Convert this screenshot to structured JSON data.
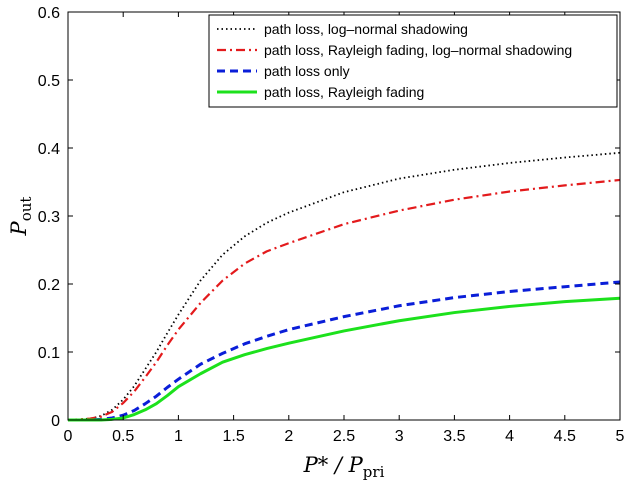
{
  "chart_data": {
    "type": "line",
    "title": "",
    "xlabel": {
      "main": "P* / P",
      "sub": "pri"
    },
    "ylabel": {
      "main": "P",
      "sub": "out"
    },
    "xlim": [
      0,
      5
    ],
    "ylim": [
      0,
      0.6
    ],
    "xticks": [
      "0",
      "0.5",
      "1",
      "1.5",
      "2",
      "2.5",
      "3",
      "3.5",
      "4",
      "4.5",
      "5"
    ],
    "yticks": [
      "0",
      "0.1",
      "0.2",
      "0.3",
      "0.4",
      "0.5",
      "0.6"
    ],
    "grid": false,
    "legend_position": "top-right",
    "x": [
      0,
      0.2,
      0.3,
      0.4,
      0.5,
      0.6,
      0.7,
      0.8,
      0.9,
      1.0,
      1.2,
      1.4,
      1.6,
      1.8,
      2.0,
      2.5,
      3.0,
      3.5,
      4.0,
      4.5,
      5.0
    ],
    "series": [
      {
        "name": "path loss, log–normal shadowing",
        "color": "#000000",
        "style": "dotted",
        "values": [
          0,
          0.002,
          0.006,
          0.015,
          0.03,
          0.05,
          0.075,
          0.1,
          0.128,
          0.155,
          0.205,
          0.243,
          0.27,
          0.29,
          0.305,
          0.335,
          0.355,
          0.368,
          0.378,
          0.386,
          0.393
        ]
      },
      {
        "name": "path loss, Rayleigh fading, log–normal shadowing",
        "color": "#e31a1c",
        "style": "dashdot",
        "values": [
          0,
          0.002,
          0.005,
          0.012,
          0.025,
          0.042,
          0.063,
          0.085,
          0.11,
          0.133,
          0.172,
          0.205,
          0.23,
          0.248,
          0.26,
          0.288,
          0.308,
          0.324,
          0.336,
          0.345,
          0.353
        ]
      },
      {
        "name": "path loss only",
        "color": "#0a1ed8",
        "style": "dashed",
        "values": [
          0,
          0.0,
          0.001,
          0.003,
          0.007,
          0.014,
          0.024,
          0.035,
          0.048,
          0.06,
          0.082,
          0.098,
          0.112,
          0.123,
          0.133,
          0.152,
          0.168,
          0.18,
          0.189,
          0.196,
          0.203
        ]
      },
      {
        "name": "path loss, Rayleigh fading",
        "color": "#1ce11c",
        "style": "solid",
        "values": [
          0,
          0.0,
          0.0,
          0.001,
          0.003,
          0.008,
          0.015,
          0.024,
          0.036,
          0.049,
          0.068,
          0.085,
          0.096,
          0.105,
          0.113,
          0.131,
          0.146,
          0.158,
          0.167,
          0.174,
          0.179
        ]
      }
    ]
  }
}
